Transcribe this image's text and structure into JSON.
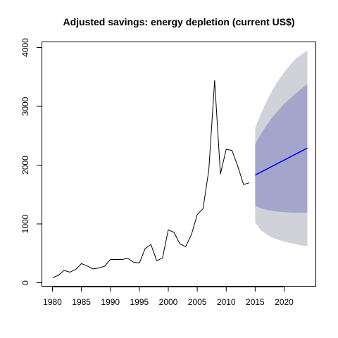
{
  "chart_data": {
    "type": "line",
    "title": "Adjusted savings: energy depletion (current US$)",
    "xlabel": "",
    "ylabel": "",
    "xlim": [
      1979,
      2025
    ],
    "ylim": [
      -100,
      4100
    ],
    "x_ticks": [
      1980,
      1985,
      1990,
      1995,
      2000,
      2005,
      2010,
      2015,
      2020
    ],
    "x_tick_labels": [
      "1980",
      "1985",
      "1990",
      "1995",
      "2000",
      "2005",
      "2010",
      "2015",
      "2020"
    ],
    "y_ticks": [
      0,
      1000,
      2000,
      3000,
      4000
    ],
    "y_tick_labels": [
      "0",
      "1000",
      "2000",
      "3000",
      "4000"
    ],
    "grid": false,
    "colors": {
      "history": "#000000",
      "forecast": "#0000ff",
      "band_outer": "#d1d1d9",
      "band_inner": "#a3a6ca"
    },
    "series": [
      {
        "x": [
          1980,
          1981,
          1982,
          1983,
          1984,
          1985,
          1986,
          1987,
          1988,
          1989,
          1990,
          1991,
          1992,
          1993,
          1994,
          1995,
          1996,
          1997,
          1998,
          1999,
          2000,
          2001,
          2002,
          2003,
          2004,
          2005,
          2006,
          2007,
          2008,
          2009,
          2010,
          2011,
          2012,
          2013,
          2014
        ],
        "values": [
          85,
          125,
          210,
          180,
          225,
          325,
          285,
          235,
          250,
          280,
          395,
          395,
          395,
          415,
          350,
          335,
          580,
          650,
          375,
          420,
          900,
          855,
          660,
          615,
          820,
          1160,
          1260,
          1920,
          3440,
          1850,
          2270,
          2250,
          1980,
          1670,
          1700
        ]
      },
      {
        "x": [
          2015,
          2024
        ],
        "values": [
          1830,
          2290
        ]
      }
    ],
    "forecast_band": {
      "x": [
        2015,
        2016,
        2017,
        2018,
        2019,
        2020,
        2021,
        2022,
        2023,
        2024
      ],
      "inner_lower": [
        1315,
        1265,
        1240,
        1220,
        1210,
        1200,
        1195,
        1190,
        1190,
        1190
      ],
      "inner_upper": [
        2360,
        2530,
        2680,
        2820,
        2930,
        3040,
        3130,
        3220,
        3300,
        3380
      ],
      "outer_lower": [
        1030,
        890,
        820,
        770,
        730,
        700,
        675,
        655,
        635,
        620
      ],
      "outer_upper": [
        2630,
        2870,
        3090,
        3280,
        3440,
        3580,
        3700,
        3810,
        3880,
        3950
      ]
    }
  }
}
